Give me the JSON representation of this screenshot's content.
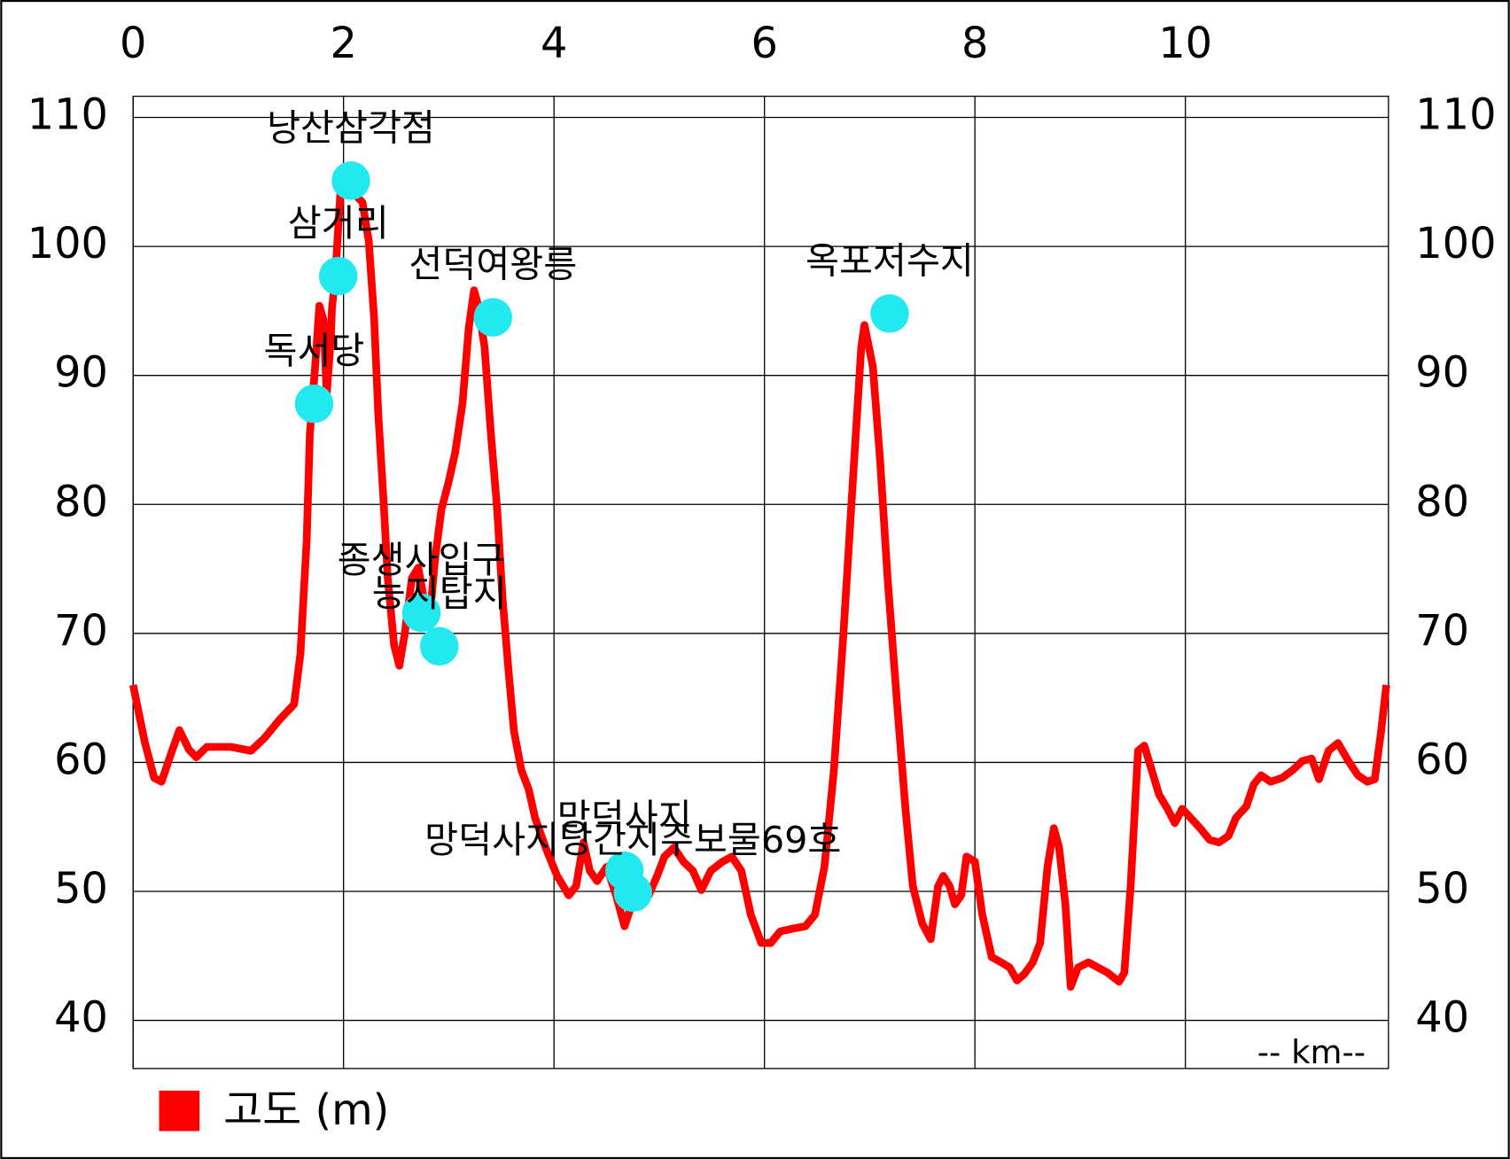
{
  "chart_data": {
    "type": "line",
    "annotation": "-- km--",
    "xlim": [
      0,
      11.93
    ],
    "xticks": [
      0,
      2,
      4,
      6,
      8,
      10
    ],
    "ylim": [
      36.27,
      111.64
    ],
    "yticks": [
      40,
      50,
      60,
      70,
      80,
      90,
      100,
      110
    ],
    "grid": true,
    "legend": "bottom-left",
    "series": [
      {
        "name": "고도 (m)",
        "color": "#ff0000",
        "x": [
          0,
          0.11,
          0.2,
          0.27,
          0.37,
          0.44,
          0.53,
          0.6,
          0.7,
          0.93,
          1.12,
          1.25,
          1.39,
          1.53,
          1.59,
          1.65,
          1.68,
          1.73,
          1.77,
          1.81,
          1.84,
          1.88,
          1.89,
          1.92,
          1.97,
          2.01,
          2.09,
          2.18,
          2.24,
          2.29,
          2.33,
          2.38,
          2.42,
          2.48,
          2.53,
          2.58,
          2.65,
          2.71,
          2.76,
          2.82,
          2.87,
          2.93,
          3.0,
          3.06,
          3.13,
          3.19,
          3.24,
          3.28,
          3.34,
          3.4,
          3.46,
          3.51,
          3.57,
          3.62,
          3.69,
          3.76,
          3.82,
          3.92,
          4.03,
          4.14,
          4.21,
          4.28,
          4.34,
          4.41,
          4.5,
          4.59,
          4.67,
          4.74,
          4.83,
          4.9,
          4.98,
          5.05,
          5.14,
          5.23,
          5.32,
          5.4,
          5.49,
          5.6,
          5.69,
          5.78,
          5.87,
          5.97,
          6.06,
          6.15,
          6.26,
          6.39,
          6.48,
          6.57,
          6.66,
          6.75,
          6.84,
          6.92,
          6.95,
          7.03,
          7.1,
          7.17,
          7.26,
          7.34,
          7.41,
          7.5,
          7.58,
          7.65,
          7.7,
          7.76,
          7.81,
          7.87,
          7.92,
          8.0,
          8.07,
          8.16,
          8.25,
          8.33,
          8.4,
          8.47,
          8.55,
          8.62,
          8.69,
          8.75,
          8.8,
          8.86,
          8.91,
          8.98,
          9.08,
          9.17,
          9.26,
          9.37,
          9.42,
          9.48,
          9.55,
          9.61,
          9.68,
          9.75,
          9.83,
          9.9,
          9.97,
          10.05,
          10.14,
          10.23,
          10.32,
          10.41,
          10.48,
          10.58,
          10.65,
          10.72,
          10.81,
          10.92,
          11.02,
          11.11,
          11.2,
          11.27,
          11.36,
          11.45,
          11.55,
          11.64,
          11.73,
          11.8,
          11.86,
          11.91
        ],
        "values": [
          66.0,
          61.6,
          58.8,
          58.5,
          60.9,
          62.5,
          61.0,
          60.4,
          61.2,
          61.2,
          60.9,
          61.9,
          63.3,
          64.5,
          68.4,
          77.3,
          85.5,
          90.7,
          95.4,
          94.3,
          88.5,
          93.0,
          95.2,
          97.5,
          104.2,
          105.4,
          104.2,
          103.4,
          100.4,
          94.5,
          87.0,
          80.3,
          74.3,
          69.1,
          67.5,
          69.9,
          74.3,
          75.1,
          72.8,
          71.3,
          75.8,
          79.6,
          81.8,
          84.0,
          87.8,
          93.7,
          96.6,
          95.4,
          92.2,
          85.5,
          79.6,
          72.8,
          66.9,
          62.4,
          59.4,
          57.9,
          55.7,
          53.4,
          51.2,
          49.7,
          50.4,
          53.8,
          51.6,
          50.8,
          51.9,
          49.7,
          47.3,
          49.0,
          49.0,
          49.7,
          51.2,
          52.7,
          53.4,
          52.3,
          51.6,
          50.1,
          51.6,
          52.3,
          52.7,
          51.6,
          48.2,
          46.0,
          46.0,
          46.9,
          47.1,
          47.3,
          48.2,
          51.9,
          59.4,
          69.9,
          81.8,
          92.2,
          93.9,
          90.7,
          83.3,
          74.3,
          64.6,
          56.4,
          50.4,
          47.5,
          46.3,
          50.4,
          51.2,
          50.4,
          49.0,
          49.7,
          52.7,
          52.3,
          48.2,
          44.9,
          44.5,
          44.1,
          43.1,
          43.6,
          44.5,
          46.0,
          51.9,
          54.9,
          53.4,
          49.0,
          42.6,
          44.1,
          44.5,
          44.1,
          43.7,
          43.0,
          43.7,
          50.4,
          60.9,
          61.3,
          59.4,
          57.5,
          56.4,
          55.3,
          56.4,
          55.7,
          54.9,
          54.0,
          53.8,
          54.3,
          55.7,
          56.6,
          58.3,
          59.0,
          58.5,
          58.8,
          59.4,
          60.1,
          60.3,
          58.7,
          60.9,
          61.5,
          60.1,
          59.0,
          58.5,
          58.7,
          62.4,
          66.0
        ]
      }
    ],
    "marker_color": "#22e8f0",
    "markers": [
      {
        "label": "낭산삼각점",
        "x": 2.07,
        "y": 105.1
      },
      {
        "label": "삼거리",
        "x": 1.95,
        "y": 97.7
      },
      {
        "label": "독서당",
        "x": 1.72,
        "y": 87.8
      },
      {
        "label": "선덕여왕릉",
        "x": 3.42,
        "y": 94.5
      },
      {
        "label": "종생사입구",
        "x": 2.74,
        "y": 71.6
      },
      {
        "label": "능지탑지",
        "x": 2.91,
        "y": 69.0
      },
      {
        "label": "망덕사지",
        "x": 4.67,
        "y": 51.6
      },
      {
        "label": "망덕사지당간지주보물69호",
        "x": 4.75,
        "y": 49.9
      },
      {
        "label": "옥포저수지",
        "x": 7.19,
        "y": 94.8
      }
    ]
  }
}
